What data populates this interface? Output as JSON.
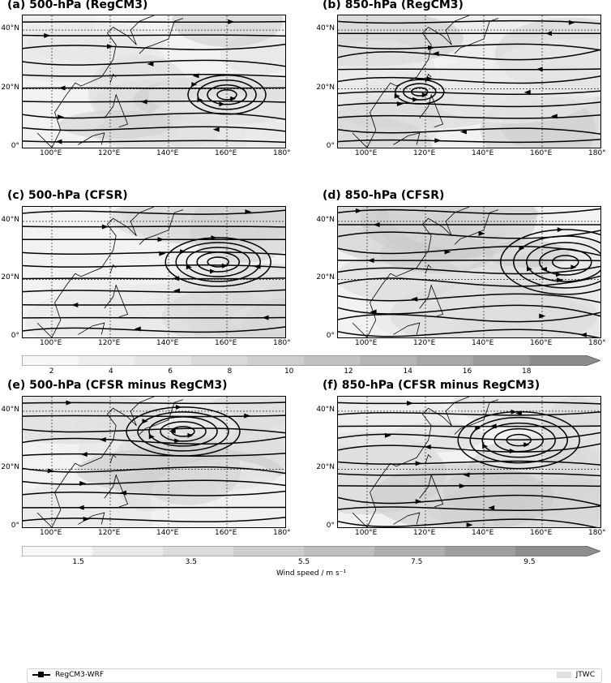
{
  "panels": [
    {
      "id": "a",
      "title": "(a) 500-hPa (RegCM3)"
    },
    {
      "id": "b",
      "title": "(b) 850-hPa (RegCM3)"
    },
    {
      "id": "c",
      "title": "(c) 500-hPa (CFSR)"
    },
    {
      "id": "d",
      "title": "(d) 850-hPa (CFSR)"
    },
    {
      "id": "e",
      "title": "(e) 500-hPa (CFSR minus RegCM3)"
    },
    {
      "id": "f",
      "title": "(f) 850-hPa (CFSR minus RegCM3)"
    }
  ],
  "lon_ticks": [
    "100°E",
    "120°E",
    "140°E",
    "160°E",
    "180°"
  ],
  "lat_ticks": [
    "40°N",
    "20°N",
    "0°"
  ],
  "map_extent": {
    "lon_min": 90,
    "lon_max": 180,
    "lat_min": 0,
    "lat_max": 45
  },
  "colorbar_top": {
    "labels": [
      "2",
      "4",
      "6",
      "8",
      "10",
      "12",
      "14",
      "16",
      "18"
    ],
    "values": [
      2,
      4,
      6,
      8,
      10,
      12,
      14,
      16,
      18
    ],
    "range": [
      1,
      20
    ],
    "colors": [
      "#f7f7f7",
      "#eeeeee",
      "#e4e4e4",
      "#d9d9d9",
      "#cecece",
      "#c2c2c2",
      "#b5b5b5",
      "#a8a8a8",
      "#9a9a9a",
      "#8c8c8c"
    ]
  },
  "colorbar_bottom": {
    "labels": [
      "1.5",
      "3.5",
      "5.5",
      "7.5",
      "9.5"
    ],
    "values": [
      1.5,
      3.5,
      5.5,
      7.5,
      9.5
    ],
    "range": [
      0.5,
      10.5
    ],
    "title": "Wind speed / m s⁻¹",
    "colors": [
      "#f7f7f7",
      "#eaeaea",
      "#dcdcdc",
      "#cdcdcd",
      "#bebebe",
      "#aeaeae",
      "#9e9e9e",
      "#8e8e8e"
    ]
  },
  "legend": {
    "left_label": "RegCM3-WRF",
    "right_label": "JTWC"
  }
}
